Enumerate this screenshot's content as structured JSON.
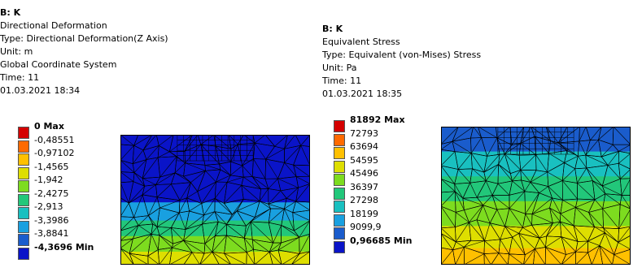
{
  "left_panel": {
    "info": {
      "title": "B: K",
      "result_name": "Directional Deformation",
      "type": "Type: Directional Deformation(Z Axis)",
      "unit": "Unit: m",
      "coordinate_system": "Global Coordinate System",
      "time": "Time: 11",
      "timestamp": "01.03.2021 18:34"
    },
    "legend": {
      "labels": [
        "0 Max",
        "-0,48551",
        "-0,97102",
        "-1,4565",
        "-1,942",
        "-2,4275",
        "-2,913",
        "-3,3986",
        "-3,8841",
        "-4,3696 Min"
      ],
      "colors": [
        "#d40000",
        "#ff6a00",
        "#ffc000",
        "#dede00",
        "#7ddc1f",
        "#22c77a",
        "#19c0c0",
        "#19a0e0",
        "#1a5ccc",
        "#0a14c8"
      ]
    }
  },
  "right_panel": {
    "info": {
      "title": "B: K",
      "result_name": "Equivalent Stress",
      "type": "Type: Equivalent (von-Mises) Stress",
      "unit": "Unit: Pa",
      "time": "Time: 11",
      "timestamp": "01.03.2021 18:35"
    },
    "legend": {
      "labels": [
        "81892 Max",
        "72793",
        "63694",
        "54595",
        "45496",
        "36397",
        "27298",
        "18199",
        "9099,9",
        "0,96685 Min"
      ],
      "colors": [
        "#d40000",
        "#ff6a00",
        "#ffc000",
        "#dede00",
        "#7ddc1f",
        "#22c77a",
        "#19c0c0",
        "#19a0e0",
        "#1a5ccc",
        "#0a14c8"
      ]
    }
  }
}
